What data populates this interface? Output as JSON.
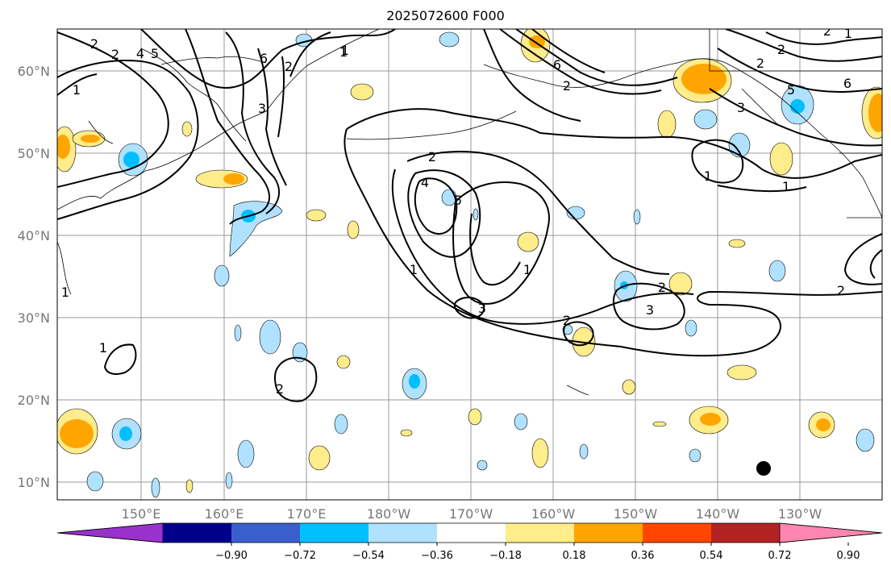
{
  "title": "2025072600 F000",
  "map": {
    "lat_labels": [
      "10°N",
      "20°N",
      "30°N",
      "40°N",
      "50°N",
      "60°N"
    ],
    "lon_labels": [
      "150°E",
      "160°E",
      "170°E",
      "180°W",
      "170°W",
      "160°W",
      "150°W",
      "140°W",
      "130°W"
    ],
    "contour_labels": [
      "2",
      "4",
      "5",
      "6",
      "2",
      "1",
      "3",
      "2",
      "1",
      "2",
      "4",
      "5",
      "1",
      "3",
      "2",
      "3",
      "2",
      "1",
      "6",
      "2",
      "5",
      "1",
      "2",
      "2",
      "1",
      "1",
      "2",
      "3",
      "6",
      "2",
      "1",
      "2",
      "1",
      "1"
    ]
  },
  "colorbar": {
    "ticks": [
      "−0.90",
      "−0.72",
      "−0.54",
      "−0.36",
      "−0.18",
      "0.18",
      "0.36",
      "0.54",
      "0.72",
      "0.90"
    ],
    "colors": [
      "#9932CC",
      "#00008B",
      "#3A5FCD",
      "#00BFFF",
      "#B0E2FF",
      "#FFFFFF",
      "#FFEC8B",
      "#FFA500",
      "#FF4500",
      "#B22222",
      "#FF86B0"
    ]
  }
}
